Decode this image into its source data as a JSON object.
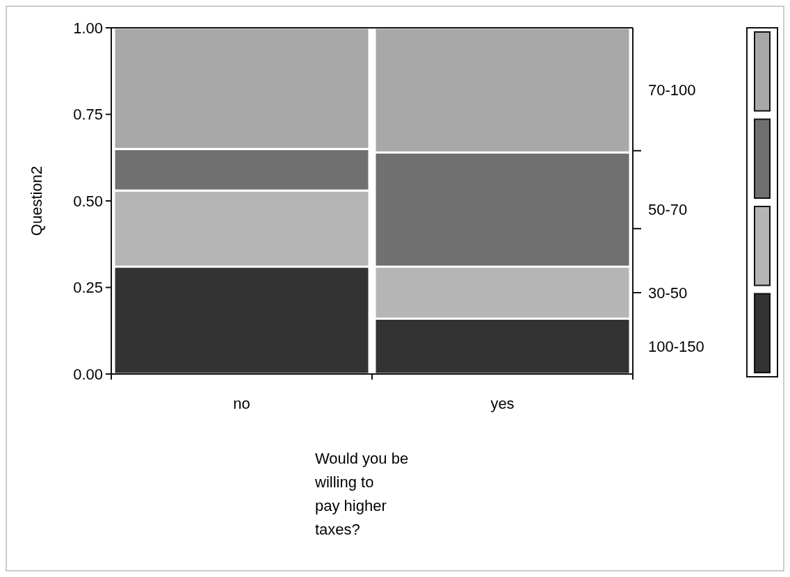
{
  "chart_data": {
    "type": "bar",
    "stacked": true,
    "categories": [
      "no",
      "yes"
    ],
    "xlabel": "Would you be willing to pay higher taxes?",
    "ylabel": "Question2",
    "ylim": [
      0,
      1
    ],
    "yticks": [
      {
        "value": 0,
        "label": "0.00"
      },
      {
        "value": 0.25,
        "label": "0.25"
      },
      {
        "value": 0.5,
        "label": "0.50"
      },
      {
        "value": 0.75,
        "label": "0.75"
      },
      {
        "value": 1,
        "label": "1.00"
      }
    ],
    "series": [
      {
        "name": "100-150",
        "color": "#333333",
        "values": [
          0.31,
          0.16
        ]
      },
      {
        "name": "30-50",
        "color": "#b5b5b5",
        "values": [
          0.22,
          0.15
        ]
      },
      {
        "name": "50-70",
        "color": "#707070",
        "values": [
          0.12,
          0.33
        ]
      },
      {
        "name": "70-100",
        "color": "#a8a8a8",
        "values": [
          0.35,
          0.36
        ]
      }
    ]
  }
}
